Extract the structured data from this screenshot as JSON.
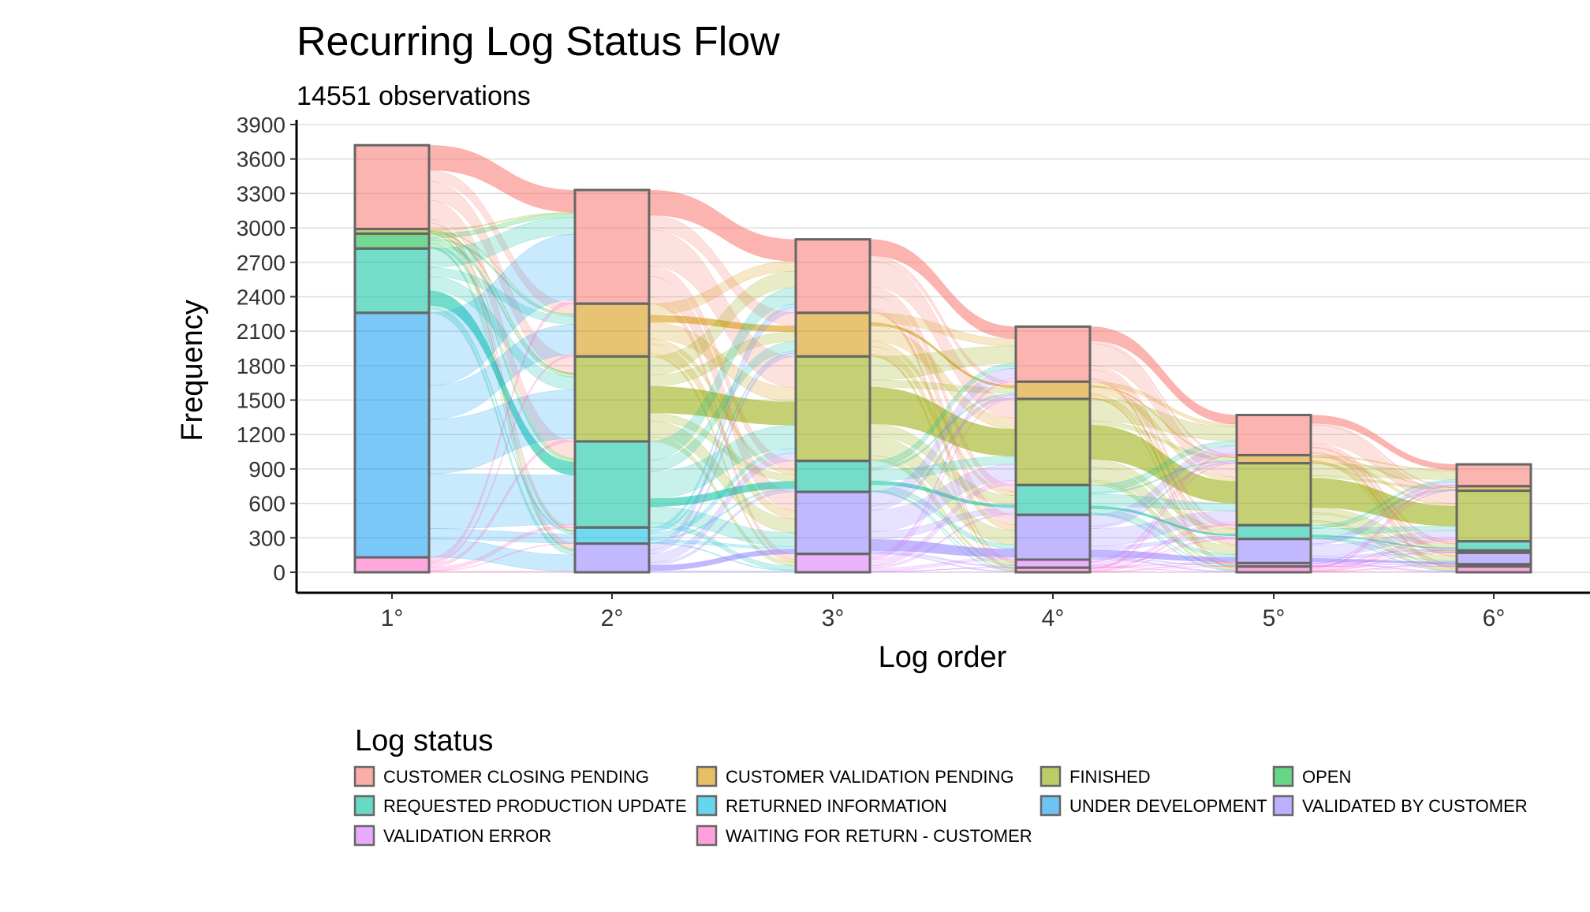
{
  "chart_data": {
    "type": "alluvial",
    "title": "Recurring Log Status Flow",
    "subtitle": "14551 observations",
    "xlabel": "Log order",
    "ylabel": "Frequency",
    "ylim": [
      0,
      3900
    ],
    "yticks": [
      0,
      300,
      600,
      900,
      1200,
      1500,
      1800,
      2100,
      2400,
      2700,
      3000,
      3300,
      3600,
      3900
    ],
    "grid": "horizontal",
    "categories": [
      "1°",
      "2°",
      "3°",
      "4°",
      "5°",
      "6°"
    ],
    "legend": {
      "title": "Log status",
      "placement": "bottom",
      "entries": [
        {
          "label": "CUSTOMER CLOSING PENDING",
          "color": "#F8766D"
        },
        {
          "label": "CUSTOMER VALIDATION PENDING",
          "color": "#D39200"
        },
        {
          "label": "FINISHED",
          "color": "#93AA00"
        },
        {
          "label": "OPEN",
          "color": "#00BA38"
        },
        {
          "label": "REQUESTED PRODUCTION UPDATE",
          "color": "#00C19F"
        },
        {
          "label": "RETURNED INFORMATION",
          "color": "#00B9E3"
        },
        {
          "label": "UNDER DEVELOPMENT",
          "color": "#0B9BF0"
        },
        {
          "label": "VALIDATED BY CUSTOMER",
          "color": "#8F7DFF"
        },
        {
          "label": "VALIDATION ERROR",
          "color": "#DB72FB"
        },
        {
          "label": "WAITING FOR RETURN - CUSTOMER",
          "color": "#FF61C3"
        }
      ]
    },
    "series": [
      {
        "name": "CUSTOMER CLOSING PENDING",
        "values": [
          730,
          990,
          640,
          480,
          350,
          190
        ]
      },
      {
        "name": "CUSTOMER VALIDATION PENDING",
        "values": [
          0,
          460,
          380,
          150,
          70,
          40
        ]
      },
      {
        "name": "FINISHED",
        "values": [
          40,
          740,
          910,
          750,
          540,
          440
        ]
      },
      {
        "name": "OPEN",
        "values": [
          130,
          0,
          0,
          0,
          0,
          0
        ]
      },
      {
        "name": "REQUESTED PRODUCTION UPDATE",
        "values": [
          560,
          750,
          270,
          260,
          120,
          80
        ]
      },
      {
        "name": "RETURNED INFORMATION",
        "values": [
          0,
          140,
          0,
          0,
          0,
          20
        ]
      },
      {
        "name": "UNDER DEVELOPMENT",
        "values": [
          2130,
          0,
          0,
          0,
          0,
          0
        ]
      },
      {
        "name": "VALIDATED BY CUSTOMER",
        "values": [
          0,
          250,
          540,
          390,
          210,
          100
        ]
      },
      {
        "name": "VALIDATION ERROR",
        "values": [
          0,
          0,
          160,
          70,
          30,
          20
        ]
      },
      {
        "name": "WAITING FOR RETURN - CUSTOMER",
        "values": [
          130,
          0,
          0,
          40,
          50,
          50
        ]
      }
    ]
  }
}
